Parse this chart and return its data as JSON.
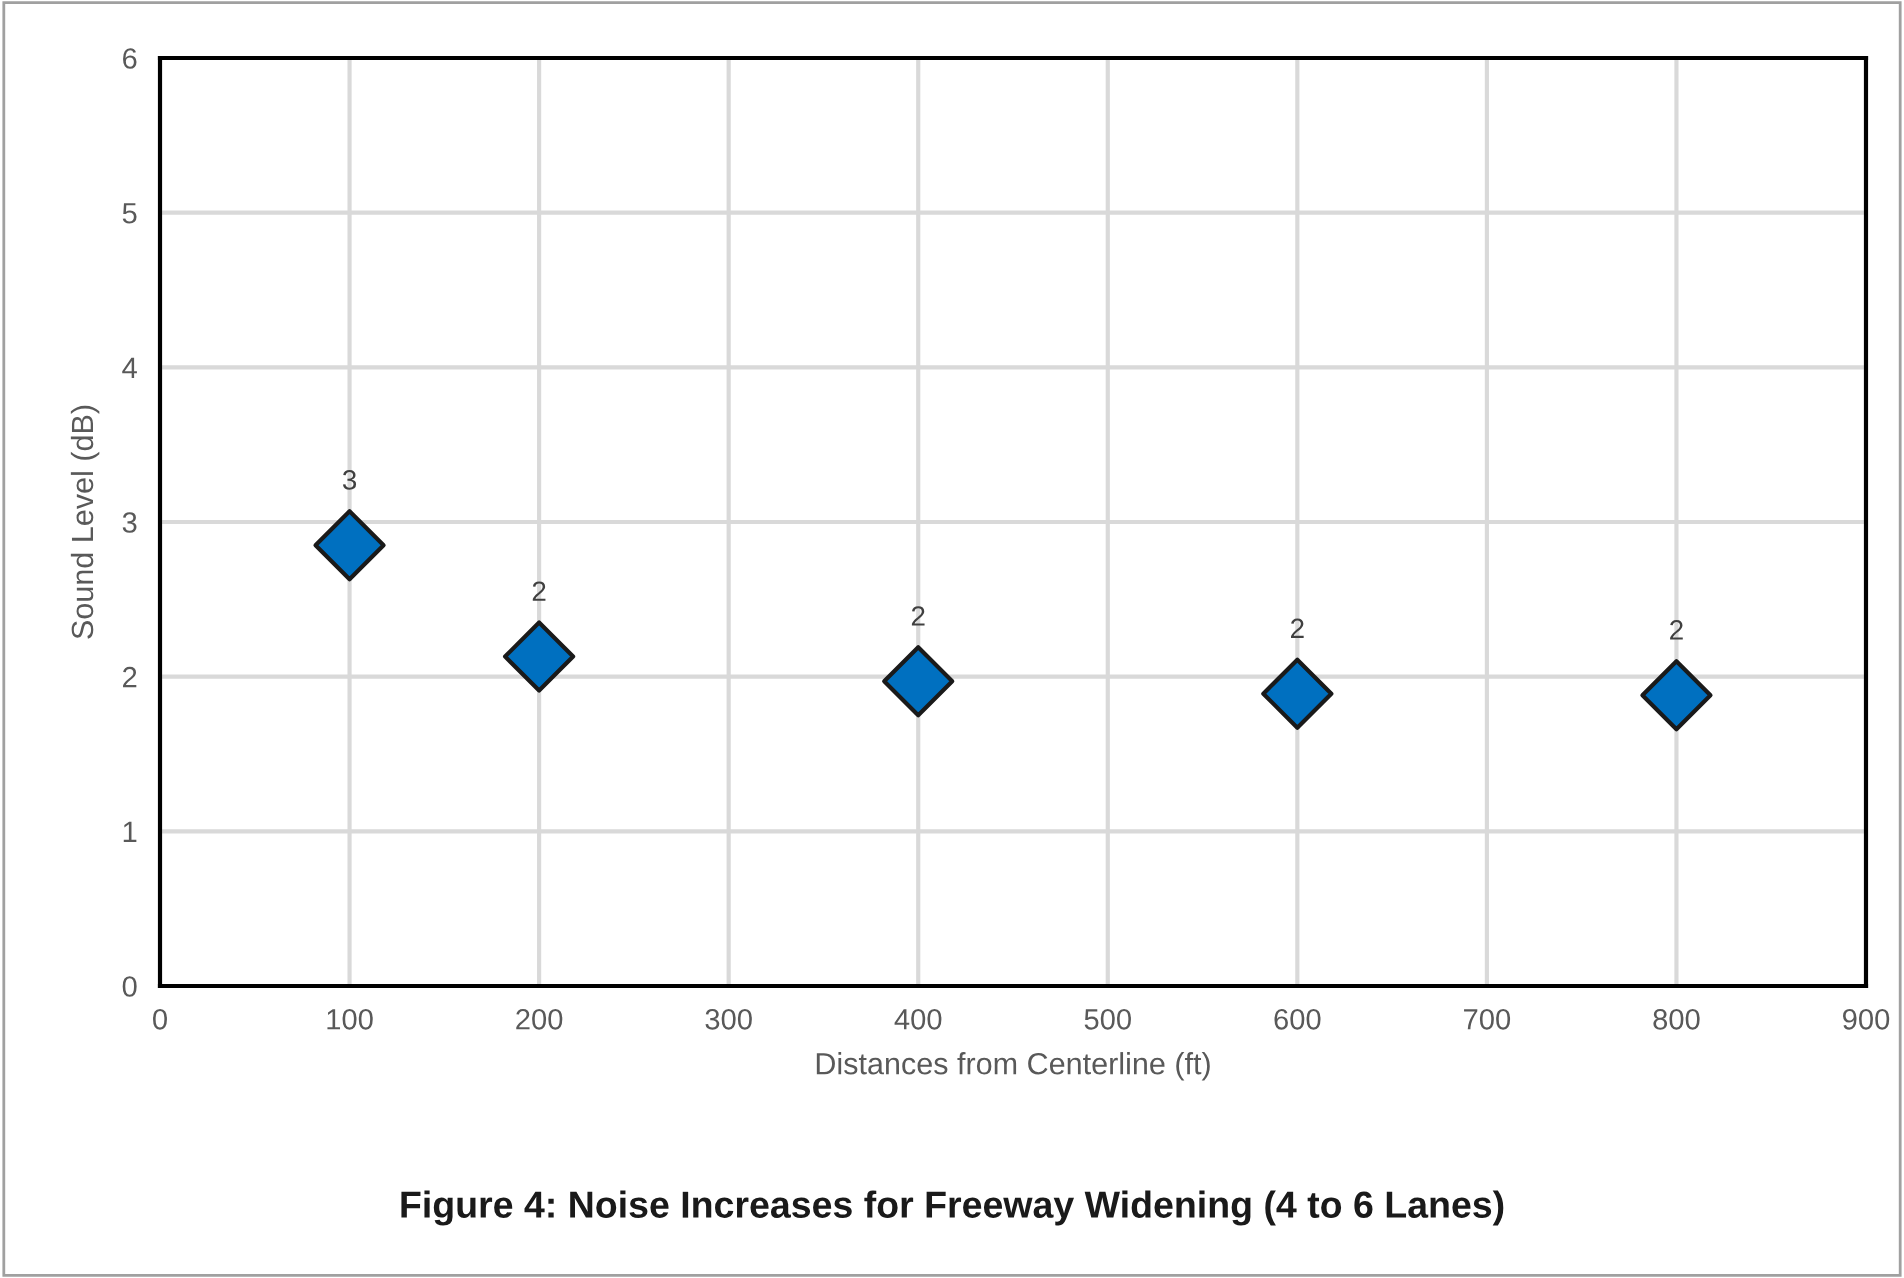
{
  "chart_data": {
    "type": "scatter",
    "title": "Figure 4: Noise Increases for Freeway Widening (4 to 6 Lanes)",
    "xlabel": "Distances from Centerline (ft)",
    "ylabel": "Sound Level (dB)",
    "x": [
      100,
      200,
      400,
      600,
      800
    ],
    "values": [
      2.85,
      2.13,
      1.97,
      1.89,
      1.88
    ],
    "value_labels": [
      "3",
      "2",
      "2",
      "2",
      "2"
    ],
    "color": "#0070c0",
    "marker": "diamond",
    "grid": true,
    "legend": false,
    "xlim": [
      0,
      900
    ],
    "xticks": [
      0,
      100,
      200,
      300,
      400,
      500,
      600,
      700,
      800,
      900
    ],
    "ylim": [
      0,
      6
    ],
    "yticks": [
      0,
      1,
      2,
      3,
      4,
      5,
      6
    ]
  }
}
